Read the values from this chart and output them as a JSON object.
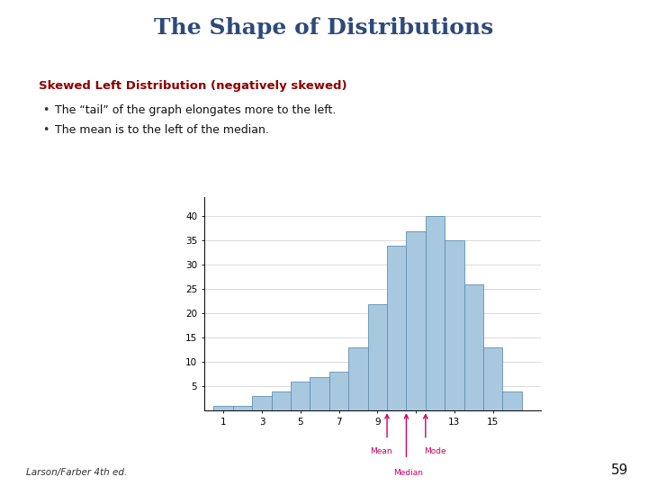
{
  "title": "The Shape of Distributions",
  "title_color": "#2E4A7A",
  "subtitle": "Skewed Left Distribution (negatively skewed)",
  "subtitle_color": "#8B0000",
  "bullet1": "The “tail” of the graph elongates more to the left.",
  "bullet2": "The mean is to the left of the median.",
  "footer": "Larson/Farber 4th ed.",
  "page_number": "59",
  "bar_x": [
    1,
    2,
    3,
    4,
    5,
    6,
    7,
    8,
    9,
    10,
    11,
    12,
    13,
    14,
    15,
    16
  ],
  "bar_heights": [
    1,
    1,
    3,
    4,
    6,
    7,
    8,
    13,
    22,
    34,
    37,
    40,
    35,
    26,
    13,
    4
  ],
  "bar_color": "#A8C8E0",
  "bar_edgecolor": "#6090B0",
  "xtick_labels": [
    "1",
    "3",
    "5",
    "7",
    "9",
    "",
    "13",
    "15"
  ],
  "xtick_positions": [
    1,
    3,
    5,
    7,
    9,
    11,
    13,
    15
  ],
  "ytick_labels": [
    "5",
    "10",
    "15",
    "20",
    "25",
    "30",
    "35",
    "40"
  ],
  "ytick_positions": [
    5,
    10,
    15,
    20,
    25,
    30,
    35,
    40
  ],
  "mean_x": 9.5,
  "median_x": 10.5,
  "mode_x": 11.5,
  "annotation_color": "#CC0066",
  "background_color": "#FFFFFF"
}
